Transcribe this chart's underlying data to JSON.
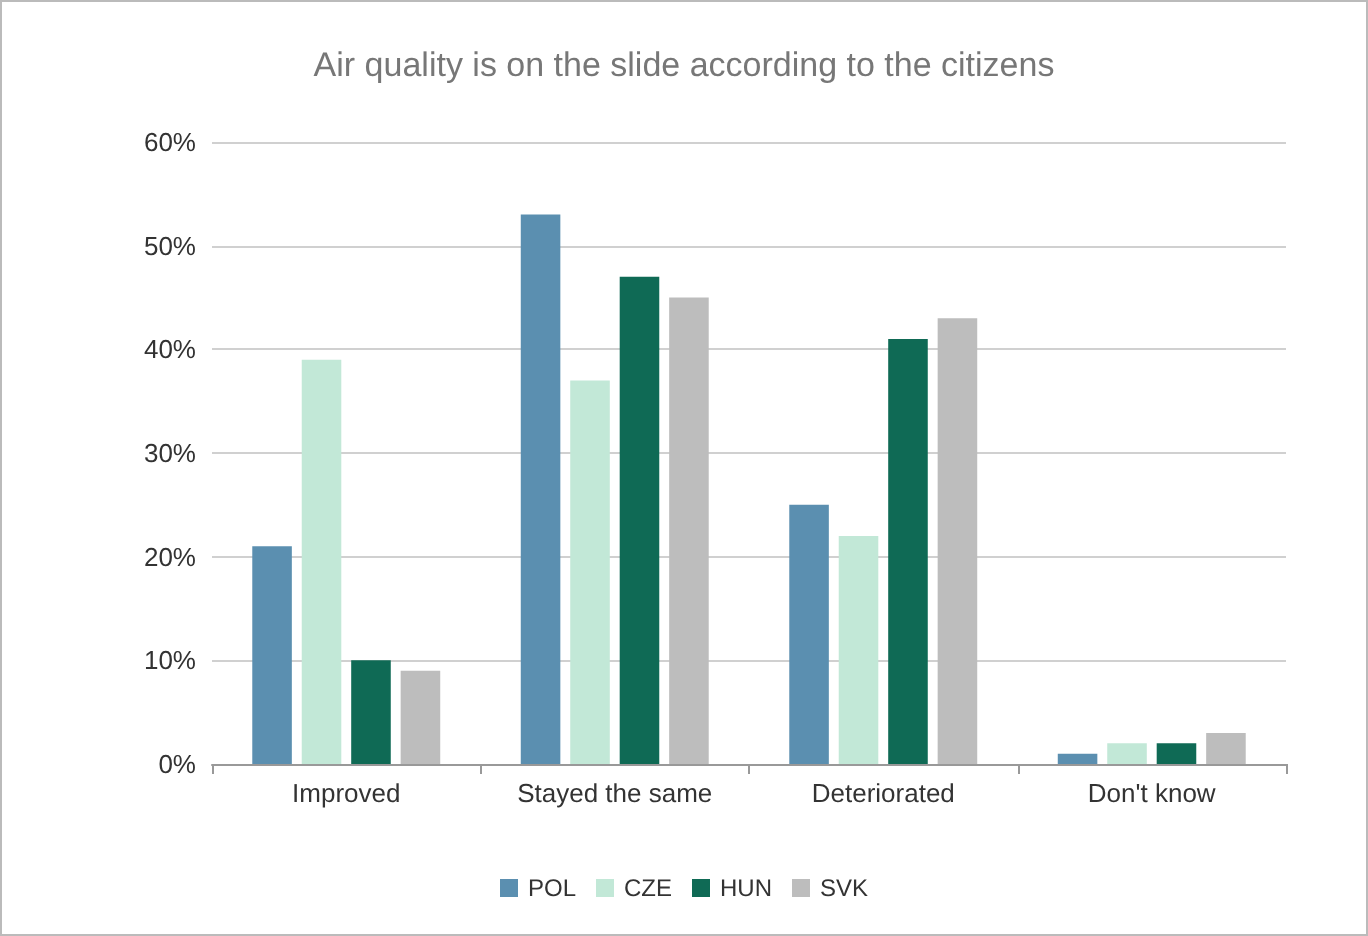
{
  "chart_data": {
    "type": "bar",
    "title": "Air quality is on the slide according to the citizens",
    "categories": [
      "Improved",
      "Stayed the same",
      "Deteriorated",
      "Don't know"
    ],
    "series": [
      {
        "name": "POL",
        "color": "#5b8fb0",
        "values": [
          21,
          53,
          25,
          1
        ]
      },
      {
        "name": "CZE",
        "color": "#c2e8d7",
        "values": [
          39,
          37,
          22,
          2
        ]
      },
      {
        "name": "HUN",
        "color": "#0f6a55",
        "values": [
          10,
          47,
          41,
          2
        ]
      },
      {
        "name": "SVK",
        "color": "#bdbdbd",
        "values": [
          9,
          45,
          43,
          3
        ]
      }
    ],
    "ylim": [
      0,
      60
    ],
    "yticks": [
      {
        "value": 0,
        "label": "0%"
      },
      {
        "value": 10,
        "label": "10%"
      },
      {
        "value": 20,
        "label": "20%"
      },
      {
        "value": 30,
        "label": "30%"
      },
      {
        "value": 40,
        "label": "40%"
      },
      {
        "value": 50,
        "label": "50%"
      },
      {
        "value": 60,
        "label": "60%"
      }
    ],
    "grid": "y",
    "legend": "bottom"
  }
}
